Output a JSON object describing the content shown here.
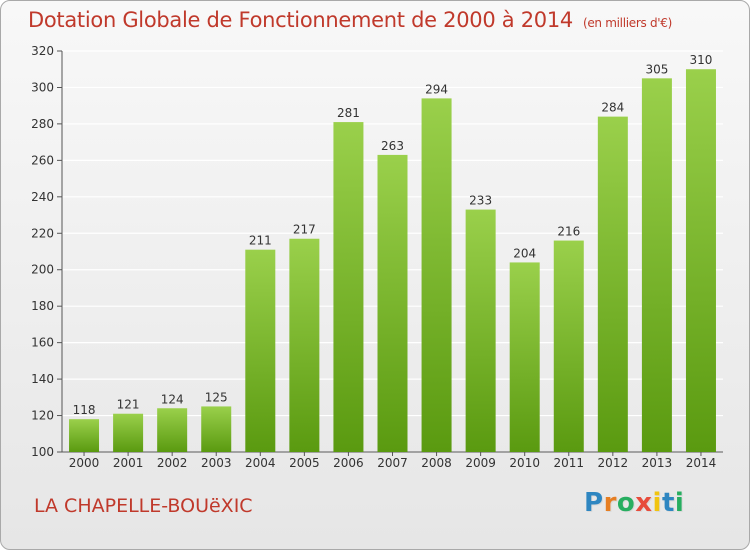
{
  "title": "Dotation Globale de Fonctionnement de 2000 à 2014",
  "subtitle": "(en milliers d'€)",
  "commune": "LA CHAPELLE-BOUëXIC",
  "brand": {
    "letters": [
      "P",
      "r",
      "o",
      "x",
      "i",
      "t",
      "i"
    ],
    "colors": [
      "#2e86c1",
      "#e67e22",
      "#27ae60",
      "#e74c3c",
      "#f1c40f",
      "#2e86c1",
      "#27ae60"
    ]
  },
  "colors": {
    "bar_top": "#9ad04b",
    "bar_bottom": "#5a9a10",
    "title": "#c0392b",
    "grid": "#ffffff"
  },
  "chart_data": {
    "type": "bar",
    "categories": [
      "2000",
      "2001",
      "2002",
      "2003",
      "2004",
      "2005",
      "2006",
      "2007",
      "2008",
      "2009",
      "2010",
      "2011",
      "2012",
      "2013",
      "2014"
    ],
    "values": [
      118,
      121,
      124,
      125,
      211,
      217,
      281,
      263,
      294,
      233,
      204,
      216,
      284,
      305,
      310
    ],
    "title": "Dotation Globale de Fonctionnement de 2000 à 2014",
    "subtitle": "(en milliers d'€)",
    "ylim": [
      100,
      320
    ],
    "yticks": [
      100,
      120,
      140,
      160,
      180,
      200,
      220,
      240,
      260,
      280,
      300,
      320
    ],
    "grid": true,
    "legend": "none"
  }
}
